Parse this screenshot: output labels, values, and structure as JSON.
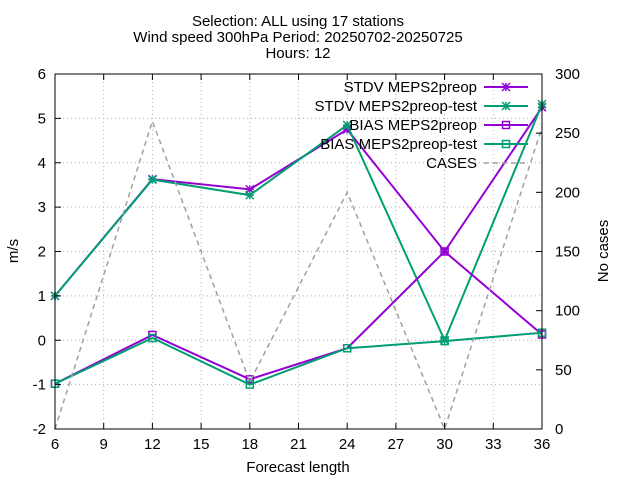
{
  "chart_data": {
    "type": "line",
    "title_lines": [
      "Selection: ALL using    17 stations",
      "Wind speed 300hPa   Period: 20250702-20250725",
      "Hours: 12"
    ],
    "xlabel": "Forecast length",
    "ylabel": "m/s",
    "y2label": "No cases",
    "x_ticks": [
      6,
      9,
      12,
      15,
      18,
      21,
      24,
      27,
      30,
      33,
      36
    ],
    "y_ticks": [
      -2,
      -1,
      0,
      1,
      2,
      3,
      4,
      5,
      6
    ],
    "y2_ticks": [
      0,
      50,
      100,
      150,
      200,
      250,
      300
    ],
    "xlim": [
      6,
      36
    ],
    "ylim": [
      -2,
      6
    ],
    "y2lim": [
      0,
      300
    ],
    "grid": true,
    "legend_position": "top-right",
    "series": [
      {
        "name": "STDV MEPS2preop",
        "axis": "y",
        "color": "#9400d3",
        "marker": "x-star",
        "dash": false,
        "x": [
          6,
          12,
          18,
          24,
          30,
          36
        ],
        "values": [
          1.0,
          3.63,
          3.4,
          4.75,
          2.0,
          5.25
        ]
      },
      {
        "name": "STDV MEPS2preop-test",
        "axis": "y",
        "color": "#009e73",
        "marker": "x-star",
        "dash": false,
        "x": [
          6,
          12,
          18,
          24,
          30,
          36
        ],
        "values": [
          1.0,
          3.62,
          3.27,
          4.85,
          0.0,
          5.32
        ]
      },
      {
        "name": "BIAS MEPS2preop",
        "axis": "y",
        "color": "#9400d3",
        "marker": "open-square",
        "dash": false,
        "x": [
          6,
          12,
          18,
          24,
          30,
          36
        ],
        "values": [
          -0.98,
          0.12,
          -0.88,
          -0.18,
          2.0,
          0.13
        ]
      },
      {
        "name": "BIAS MEPS2preop-test",
        "axis": "y",
        "color": "#009e73",
        "marker": "open-square",
        "dash": false,
        "x": [
          6,
          12,
          18,
          24,
          30,
          36
        ],
        "values": [
          -0.98,
          0.05,
          -1.0,
          -0.18,
          -0.02,
          0.17
        ]
      },
      {
        "name": "CASES",
        "axis": "y2",
        "color": "#a0a0a0",
        "marker": "none",
        "dash": true,
        "x": [
          6,
          12,
          18,
          24,
          30,
          36
        ],
        "values": [
          0,
          260,
          40,
          200,
          0,
          255
        ]
      }
    ]
  }
}
